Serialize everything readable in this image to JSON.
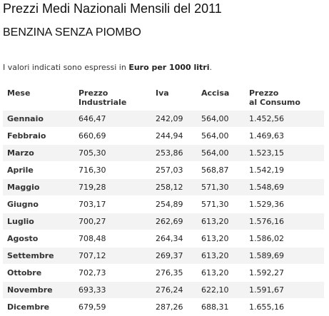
{
  "page": {
    "title": "Prezzi Medi Nazionali Mensili del 2011",
    "subtitle": "BENZINA SENZA PIOMBO",
    "note_prefix": "I valori indicati sono espressi in ",
    "note_bold": "Euro per 1000 litri",
    "note_suffix": "."
  },
  "table": {
    "headers": {
      "mese": "Mese",
      "industriale_line1": "Prezzo",
      "industriale_line2": "Industriale",
      "iva": "Iva",
      "accisa": "Accisa",
      "consumo_line1": "Prezzo",
      "consumo_line2": "al Consumo"
    },
    "rows": [
      {
        "mese": "Gennaio",
        "industriale": "646,47",
        "iva": "242,09",
        "accisa": "564,00",
        "consumo": "1.452,56"
      },
      {
        "mese": "Febbraio",
        "industriale": "660,69",
        "iva": "244,94",
        "accisa": "564,00",
        "consumo": "1.469,63"
      },
      {
        "mese": "Marzo",
        "industriale": "705,30",
        "iva": "253,86",
        "accisa": "564,00",
        "consumo": "1.523,15"
      },
      {
        "mese": "Aprile",
        "industriale": "716,30",
        "iva": "257,03",
        "accisa": "568,87",
        "consumo": "1.542,19"
      },
      {
        "mese": "Maggio",
        "industriale": "719,28",
        "iva": "258,12",
        "accisa": "571,30",
        "consumo": "1.548,69"
      },
      {
        "mese": "Giugno",
        "industriale": "703,17",
        "iva": "254,89",
        "accisa": "571,30",
        "consumo": "1.529,36"
      },
      {
        "mese": "Luglio",
        "industriale": "700,27",
        "iva": "262,69",
        "accisa": "613,20",
        "consumo": "1.576,16"
      },
      {
        "mese": "Agosto",
        "industriale": "708,48",
        "iva": "264,34",
        "accisa": "613,20",
        "consumo": "1.586,02"
      },
      {
        "mese": "Settembre",
        "industriale": "707,12",
        "iva": "269,37",
        "accisa": "613,20",
        "consumo": "1.589,69"
      },
      {
        "mese": "Ottobre",
        "industriale": "702,73",
        "iva": "276,35",
        "accisa": "613,20",
        "consumo": "1.592,27"
      },
      {
        "mese": "Novembre",
        "industriale": "693,33",
        "iva": "276,24",
        "accisa": "622,10",
        "consumo": "1.591,67"
      },
      {
        "mese": "Dicembre",
        "industriale": "679,59",
        "iva": "287,26",
        "accisa": "688,31",
        "consumo": "1.655,16"
      }
    ]
  }
}
